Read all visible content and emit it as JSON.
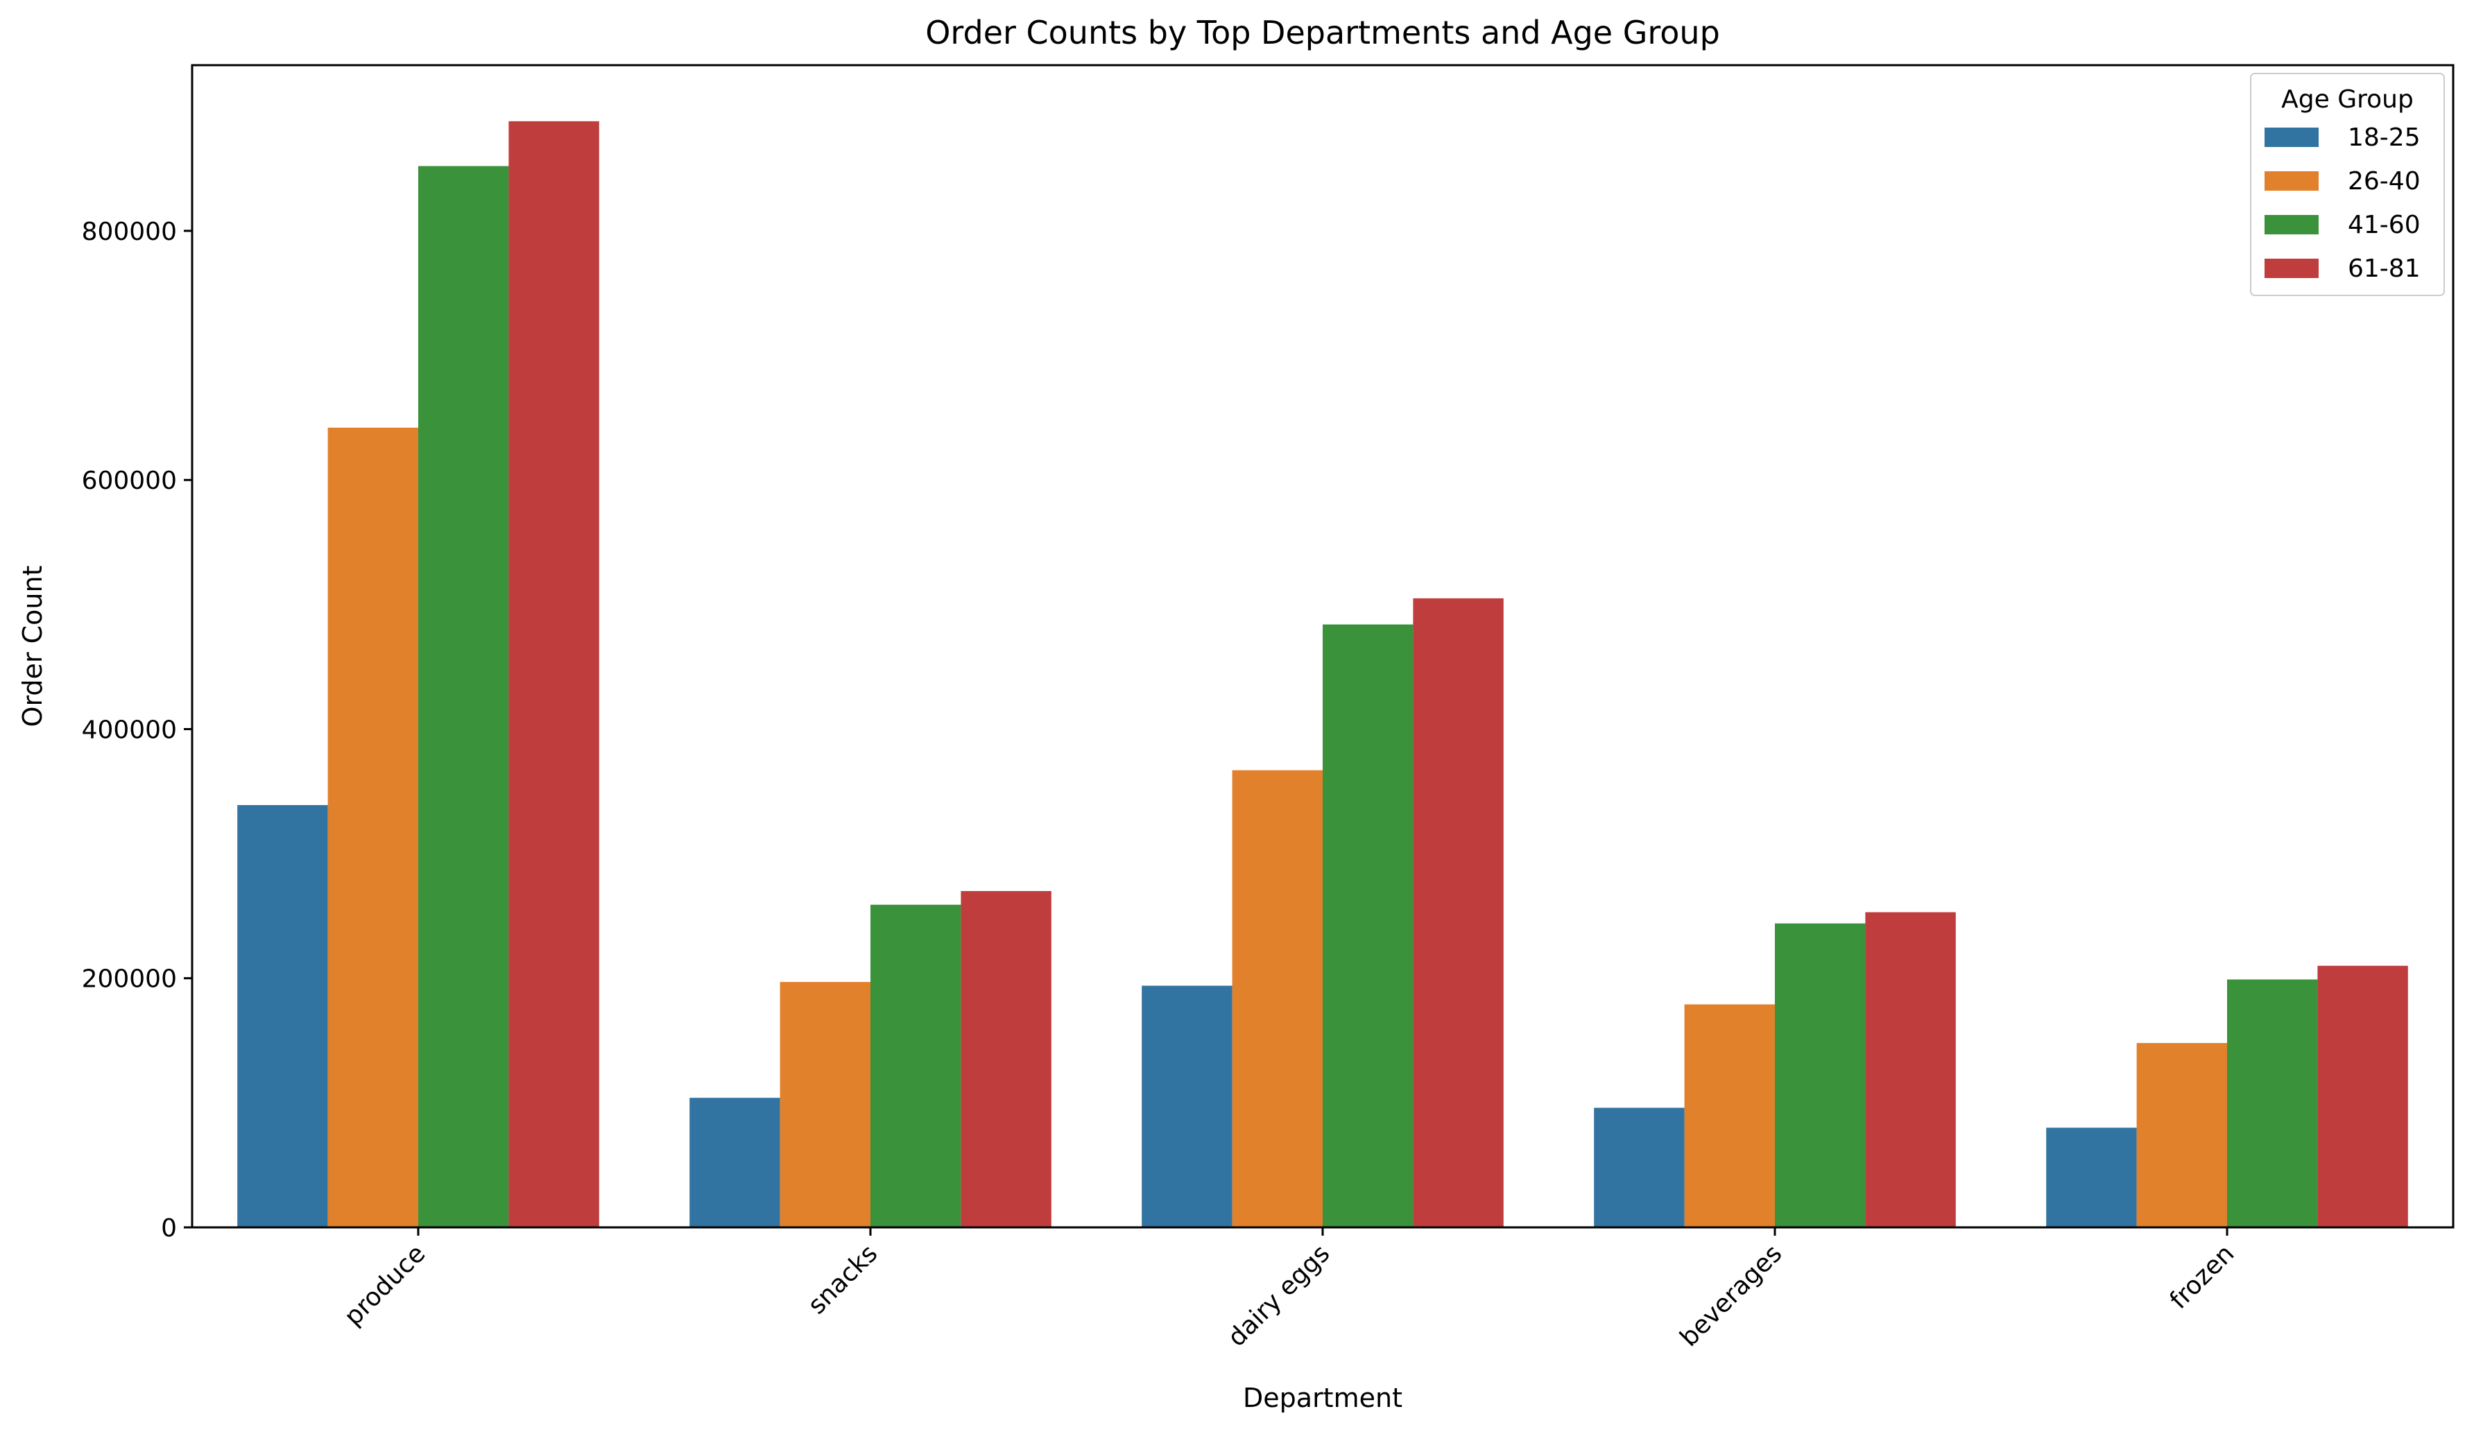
{
  "chart_data": {
    "type": "bar",
    "title": "Order Counts by Top Departments and Age Group",
    "xlabel": "Department",
    "ylabel": "Order Count",
    "categories": [
      "produce",
      "snacks",
      "dairy eggs",
      "beverages",
      "frozen"
    ],
    "yticks": [
      0,
      200000,
      400000,
      600000,
      800000
    ],
    "ytick_labels": [
      "0",
      "200000",
      "400000",
      "600000",
      "800000"
    ],
    "ylim": [
      0,
      933000
    ],
    "grid": false,
    "legend": {
      "title": "Age Group",
      "placement": "top-right"
    },
    "series": [
      {
        "name": "18-25",
        "color": "#3274a1",
        "values": [
          339000,
          104000,
          194000,
          96000,
          80000
        ]
      },
      {
        "name": "26-40",
        "color": "#e1812c",
        "values": [
          642000,
          197000,
          367000,
          179000,
          148000
        ]
      },
      {
        "name": "41-60",
        "color": "#3a923a",
        "values": [
          852000,
          259000,
          484000,
          244000,
          199000
        ]
      },
      {
        "name": "61-81",
        "color": "#c03d3e",
        "values": [
          888000,
          270000,
          505000,
          253000,
          210000
        ]
      }
    ]
  }
}
